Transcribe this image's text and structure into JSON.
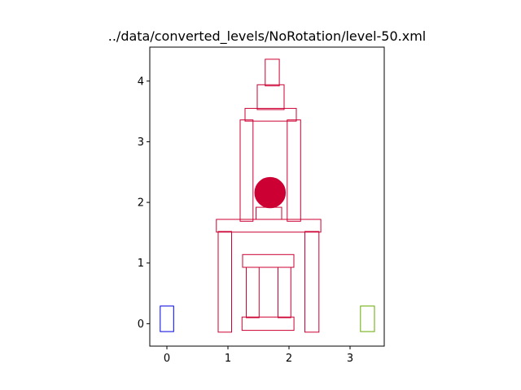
{
  "chart_data": {
    "type": "scatter",
    "title": "../data/converted_levels/NoRotation/level-50.xml",
    "xlabel": "",
    "ylabel": "",
    "xlim": [
      -0.28,
      3.56
    ],
    "ylim": [
      -0.37,
      4.56
    ],
    "x_ticks": [
      0,
      1,
      2,
      3
    ],
    "y_ticks": [
      0,
      1,
      2,
      3,
      4
    ],
    "grid": false,
    "colors": {
      "structure": "#cc0033",
      "slingshot": "#0000dd",
      "goal": "#66aa00",
      "axes": "#000000"
    },
    "blocks": [
      {
        "name": "left-pillar",
        "x0": 0.84,
        "y0": -0.14,
        "x1": 1.06,
        "y1": 1.52,
        "role": "structure"
      },
      {
        "name": "right-pillar",
        "x0": 2.26,
        "y0": -0.14,
        "x1": 2.49,
        "y1": 1.52,
        "role": "structure"
      },
      {
        "name": "bottom-plank",
        "x0": 1.23,
        "y0": -0.11,
        "x1": 2.08,
        "y1": 0.11,
        "role": "structure"
      },
      {
        "name": "inner-left-post",
        "x0": 1.3,
        "y0": 0.1,
        "x1": 1.51,
        "y1": 0.93,
        "role": "structure"
      },
      {
        "name": "inner-right-post",
        "x0": 1.82,
        "y0": 0.1,
        "x1": 2.03,
        "y1": 0.93,
        "role": "structure"
      },
      {
        "name": "middle-plank",
        "x0": 1.24,
        "y0": 0.93,
        "x1": 2.08,
        "y1": 1.14,
        "role": "structure"
      },
      {
        "name": "big-plank",
        "x0": 0.81,
        "y0": 1.51,
        "x1": 2.52,
        "y1": 1.72,
        "role": "structure"
      },
      {
        "name": "small-block",
        "x0": 1.46,
        "y0": 1.72,
        "x1": 1.88,
        "y1": 1.92,
        "role": "structure"
      },
      {
        "name": "upper-left-pillar",
        "x0": 1.2,
        "y0": 1.69,
        "x1": 1.41,
        "y1": 3.36,
        "role": "structure"
      },
      {
        "name": "upper-right-pillar",
        "x0": 1.97,
        "y0": 1.69,
        "x1": 2.19,
        "y1": 3.36,
        "role": "structure"
      },
      {
        "name": "top-plank",
        "x0": 1.28,
        "y0": 3.34,
        "x1": 2.12,
        "y1": 3.55,
        "role": "structure"
      },
      {
        "name": "top-square",
        "x0": 1.48,
        "y0": 3.53,
        "x1": 1.92,
        "y1": 3.94,
        "role": "structure"
      },
      {
        "name": "top-cap",
        "x0": 1.61,
        "y0": 3.92,
        "x1": 1.84,
        "y1": 4.36,
        "role": "structure"
      },
      {
        "name": "slingshot",
        "x0": -0.11,
        "y0": -0.13,
        "x1": 0.11,
        "y1": 0.29,
        "role": "slingshot"
      },
      {
        "name": "goal",
        "x0": 3.17,
        "y0": -0.13,
        "x1": 3.4,
        "y1": 0.29,
        "role": "goal"
      }
    ],
    "circles": [
      {
        "name": "pig-ball",
        "cx": 1.69,
        "cy": 2.16,
        "r": 0.25,
        "role": "structure"
      }
    ]
  }
}
